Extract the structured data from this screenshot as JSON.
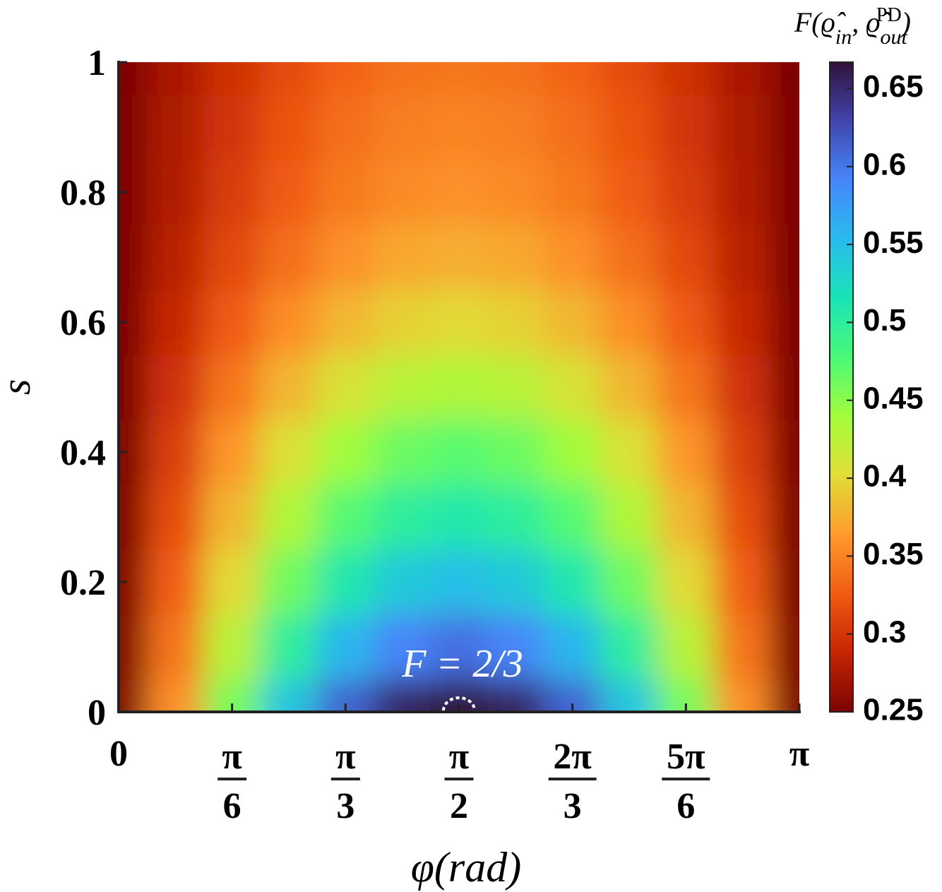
{
  "chart_data": {
    "type": "contour",
    "x_label": "φ(rad)",
    "y_label": "s",
    "colorbar_label_parts": [
      "F(",
      "ϱ̂",
      "in",
      ", ",
      "ϱ̂",
      "out",
      "PD",
      ")"
    ],
    "annotation": "F = 2/3",
    "xlim": [
      0,
      3.1416
    ],
    "ylim": [
      0,
      1
    ],
    "xticks": [
      {
        "value": 0,
        "label": "0"
      },
      {
        "value": 0.5236,
        "label": "π/6"
      },
      {
        "value": 1.0472,
        "label": "π/3"
      },
      {
        "value": 1.5708,
        "label": "π/2"
      },
      {
        "value": 2.0944,
        "label": "2π/3"
      },
      {
        "value": 2.618,
        "label": "5π/6"
      },
      {
        "value": 3.1416,
        "label": "π"
      }
    ],
    "yticks": [
      0,
      0.2,
      0.4,
      0.6,
      0.8,
      1
    ],
    "clim": [
      0.25,
      0.667
    ],
    "cticks": [
      0.25,
      0.3,
      0.35,
      0.4,
      0.45,
      0.5,
      0.55,
      0.6,
      0.65
    ],
    "colorscale": [
      "#7a0403",
      "#c42503",
      "#f05b12",
      "#fe9b2d",
      "#e1dd37",
      "#a4fc3c",
      "#4af979",
      "#1ae4b6",
      "#29bbec",
      "#4686fb",
      "#4145ab",
      "#30123b"
    ],
    "x": [
      0,
      0.2618,
      0.5236,
      0.7854,
      1.0472,
      1.309,
      1.5708,
      1.8326,
      2.0944,
      2.3562,
      2.618,
      2.8798,
      3.1416
    ],
    "y": [
      0,
      0.1,
      0.2,
      0.3,
      0.4,
      0.5,
      0.6,
      0.7,
      0.8,
      0.9,
      1
    ],
    "z": [
      [
        0.25,
        0.358,
        0.458,
        0.545,
        0.611,
        0.653,
        0.667,
        0.653,
        0.611,
        0.545,
        0.458,
        0.358,
        0.25
      ],
      [
        0.25,
        0.342,
        0.427,
        0.5,
        0.557,
        0.592,
        0.604,
        0.592,
        0.557,
        0.5,
        0.427,
        0.342,
        0.25
      ],
      [
        0.25,
        0.328,
        0.4,
        0.462,
        0.51,
        0.54,
        0.55,
        0.54,
        0.51,
        0.462,
        0.4,
        0.328,
        0.25
      ],
      [
        0.25,
        0.317,
        0.379,
        0.432,
        0.473,
        0.499,
        0.508,
        0.499,
        0.473,
        0.432,
        0.379,
        0.317,
        0.25
      ],
      [
        0.25,
        0.307,
        0.361,
        0.406,
        0.441,
        0.463,
        0.471,
        0.463,
        0.441,
        0.406,
        0.361,
        0.307,
        0.25
      ],
      [
        0.25,
        0.297,
        0.342,
        0.379,
        0.408,
        0.427,
        0.433,
        0.427,
        0.408,
        0.379,
        0.342,
        0.297,
        0.25
      ],
      [
        0.25,
        0.289,
        0.325,
        0.356,
        0.38,
        0.395,
        0.4,
        0.395,
        0.38,
        0.356,
        0.325,
        0.289,
        0.25
      ],
      [
        0.25,
        0.282,
        0.313,
        0.338,
        0.358,
        0.371,
        0.375,
        0.371,
        0.358,
        0.338,
        0.313,
        0.282,
        0.25
      ],
      [
        0.25,
        0.278,
        0.304,
        0.326,
        0.344,
        0.354,
        0.358,
        0.354,
        0.344,
        0.326,
        0.304,
        0.278,
        0.25
      ],
      [
        0.25,
        0.276,
        0.3,
        0.321,
        0.337,
        0.347,
        0.35,
        0.347,
        0.337,
        0.321,
        0.3,
        0.276,
        0.25
      ],
      [
        0.25,
        0.274,
        0.296,
        0.315,
        0.33,
        0.339,
        0.342,
        0.339,
        0.33,
        0.315,
        0.296,
        0.274,
        0.25
      ]
    ]
  }
}
